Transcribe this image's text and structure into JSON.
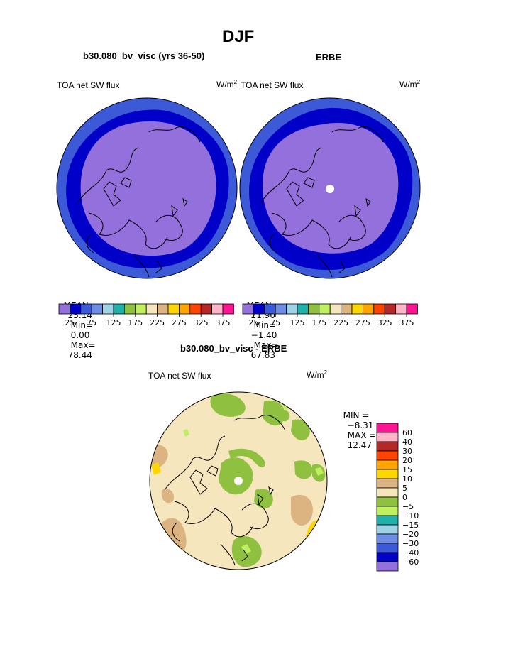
{
  "header": {
    "title": "DJF",
    "left_case": "b30.080_bv_visc (yrs 36-50)",
    "right_case": "ERBE",
    "diff_case": "b30.080_bv_visc - ERBE"
  },
  "panels": {
    "left": {
      "variable": "TOA net SW flux",
      "units_base": "W/m",
      "units_exp": "2",
      "mean_label": "MEAN=",
      "mean": "25.14",
      "min_label": "Min=",
      "min": "0.00",
      "max_label": "Max=",
      "max": "78.44"
    },
    "right": {
      "variable": "TOA net SW flux",
      "units_base": "W/m",
      "units_exp": "2",
      "mean_label": "MEAN=",
      "mean": "21.90",
      "min_label": "Min=",
      "min": "−1.40",
      "max_label": "Max=",
      "max": "67.83"
    },
    "diff": {
      "variable": "TOA net SW flux",
      "units_base": "W/m",
      "units_exp": "2",
      "min_label": "MIN =",
      "min": "−8.31",
      "max_label": "MAX =",
      "max": "12.47"
    }
  },
  "chart_data": [
    {
      "type": "polar contour map",
      "title": "b30.080_bv_visc (yrs 36-50)",
      "variable": "TOA net SW flux",
      "season": "DJF",
      "colorbar": {
        "colors": [
          "#9370db",
          "#0000c8",
          "#3c5ad7",
          "#6e8ee6",
          "#a0d2e6",
          "#20b2aa",
          "#90c040",
          "#c0f060",
          "#f5e6be",
          "#dcb482",
          "#ffd700",
          "#ffa500",
          "#ff4500",
          "#b42828",
          "#ffb4c8",
          "#ff1493"
        ],
        "tick_labels": [
          "25",
          "75",
          "125",
          "175",
          "225",
          "275",
          "325",
          "375"
        ]
      },
      "stats": {
        "mean": 25.14,
        "min": 0.0,
        "max": 78.44
      }
    },
    {
      "type": "polar contour map",
      "title": "ERBE",
      "variable": "TOA net SW flux",
      "season": "DJF",
      "colorbar": {
        "colors": [
          "#9370db",
          "#0000c8",
          "#3c5ad7",
          "#6e8ee6",
          "#a0d2e6",
          "#20b2aa",
          "#90c040",
          "#c0f060",
          "#f5e6be",
          "#dcb482",
          "#ffd700",
          "#ffa500",
          "#ff4500",
          "#b42828",
          "#ffb4c8",
          "#ff1493"
        ],
        "tick_labels": [
          "25",
          "75",
          "125",
          "175",
          "225",
          "275",
          "325",
          "375"
        ]
      },
      "stats": {
        "mean": 21.9,
        "min": -1.4,
        "max": 67.83
      }
    },
    {
      "type": "polar contour map",
      "title": "b30.080_bv_visc - ERBE",
      "variable": "TOA net SW flux",
      "season": "DJF",
      "colorbar": {
        "colors": [
          "#ff1493",
          "#ffb4c8",
          "#b42828",
          "#ff4500",
          "#ffa500",
          "#ffd700",
          "#dcb482",
          "#f5e6be",
          "#90c040",
          "#c0f060",
          "#20b2aa",
          "#a0d2e6",
          "#6e8ee6",
          "#3c5ad7",
          "#0000c8",
          "#9370db"
        ],
        "tick_labels": [
          "60",
          "40",
          "30",
          "20",
          "15",
          "10",
          "5",
          "0",
          "−5",
          "−10",
          "−15",
          "−20",
          "−30",
          "−40",
          "−60"
        ]
      },
      "stats": {
        "min": -8.31,
        "max": 12.47
      }
    }
  ]
}
